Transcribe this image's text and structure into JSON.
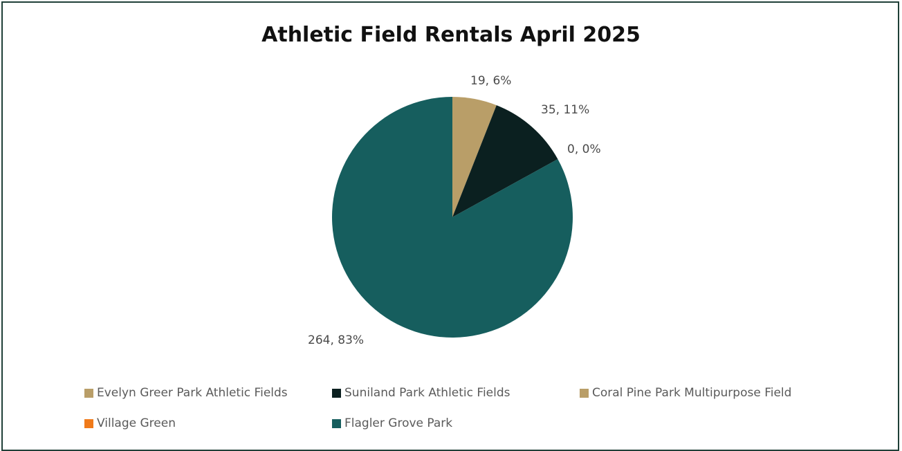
{
  "chart_data": {
    "type": "pie",
    "title": "Athletic Field Rentals April 2025",
    "slices": [
      {
        "name": "Evelyn Greer Park Athletic Fields",
        "value": 19,
        "percent": "6%",
        "label": "19, 6%",
        "color": "#b99e68"
      },
      {
        "name": "Suniland Park Athletic Fields",
        "value": 35,
        "percent": "11%",
        "label": "35, 11%",
        "color": "#0b2020"
      },
      {
        "name": "Coral Pine Park Multipurpose Field",
        "value": 0,
        "percent": "0%",
        "label": "0, 0%",
        "color": "#b99e68"
      },
      {
        "name": "Village Green",
        "value": 0,
        "percent": "0%",
        "label": "",
        "color": "#f07a1a"
      },
      {
        "name": "Flagler Grove Park",
        "value": 264,
        "percent": "83%",
        "label": "264, 83%",
        "color": "#165e5e"
      }
    ],
    "legend_position": "bottom"
  }
}
